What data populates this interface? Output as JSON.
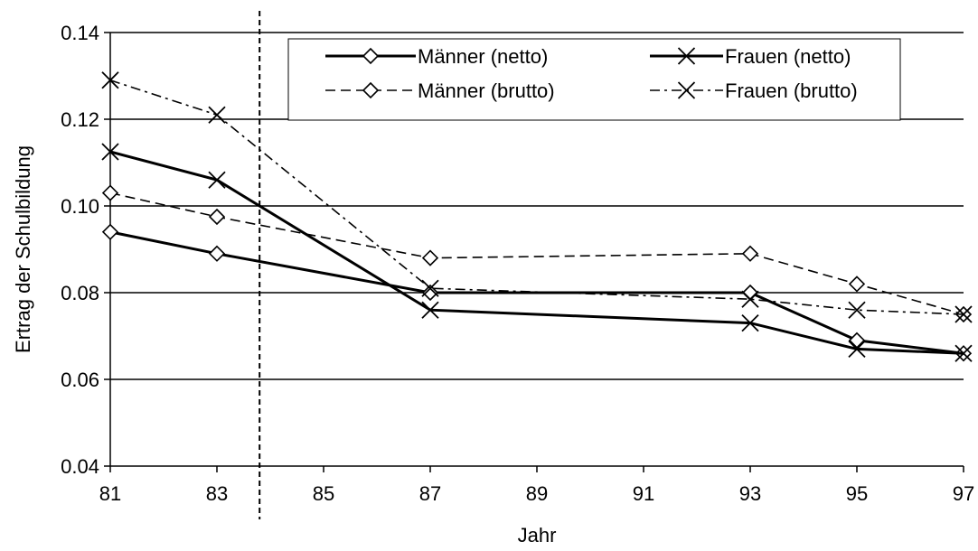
{
  "chart_data": {
    "type": "line",
    "title": "",
    "xlabel": "Jahr",
    "ylabel": "Ertrag der Schulbildung",
    "x": [
      81,
      83,
      87,
      93,
      95,
      97
    ],
    "xlim": [
      81,
      97
    ],
    "xticks": [
      "81",
      "83",
      "85",
      "87",
      "89",
      "91",
      "93",
      "95",
      "97"
    ],
    "ylim": [
      0.04,
      0.14
    ],
    "yticks": [
      "0.04",
      "0.06",
      "0.08",
      "0.10",
      "0.12",
      "0.14"
    ],
    "grid": "horizontal",
    "legend_position": "top-right",
    "vline_x": 83.8,
    "series": [
      {
        "name": "Männer (netto)",
        "marker": "diamond",
        "dash": "solid",
        "values": [
          0.094,
          0.089,
          0.08,
          0.08,
          0.069,
          0.066
        ]
      },
      {
        "name": "Frauen (netto)",
        "marker": "x",
        "dash": "solid",
        "values": [
          0.1125,
          0.106,
          0.076,
          0.073,
          0.067,
          0.066
        ]
      },
      {
        "name": "Männer (brutto)",
        "marker": "diamond",
        "dash": "dashed",
        "values": [
          0.103,
          0.0975,
          0.088,
          0.089,
          0.082,
          0.075
        ]
      },
      {
        "name": "Frauen (brutto)",
        "marker": "x",
        "dash": "dashdot",
        "values": [
          0.129,
          0.121,
          0.081,
          0.0785,
          0.076,
          0.075
        ]
      }
    ]
  }
}
